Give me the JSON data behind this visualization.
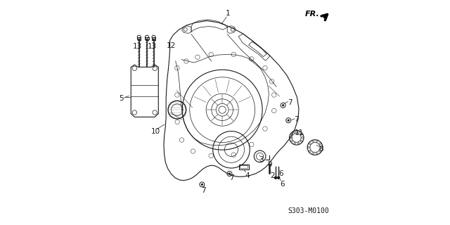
{
  "title": "",
  "background_color": "#ffffff",
  "part_number": "S303-M0100",
  "fr_label": "FR.",
  "image_color": "#1a1a1a",
  "label_fontsize": 7.5,
  "part_number_fontsize": 7,
  "fr_fontsize": 8
}
